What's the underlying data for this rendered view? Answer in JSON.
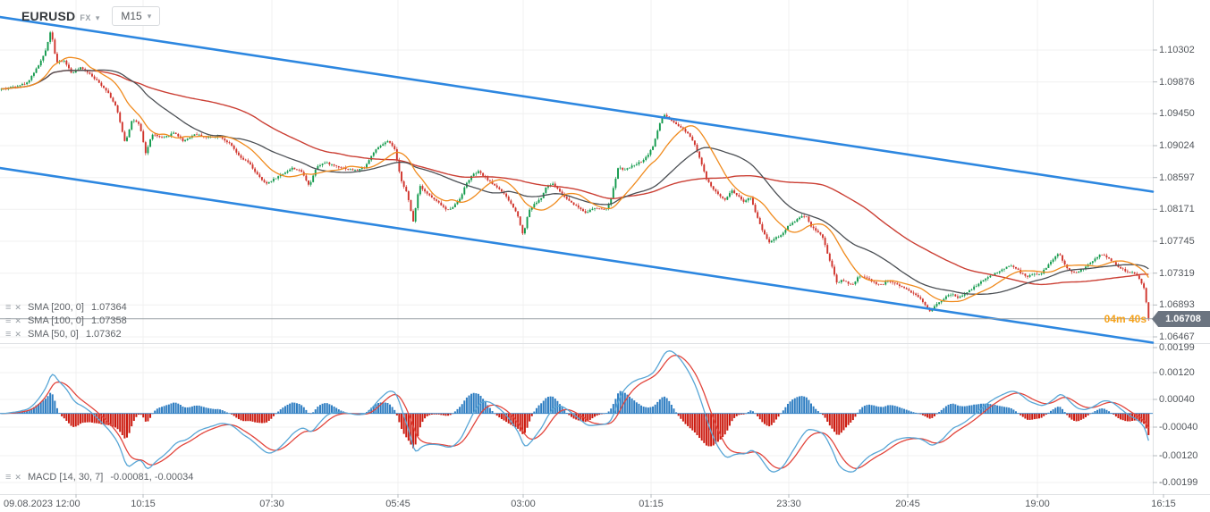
{
  "symbol_bar": {
    "symbol": "EURUSD",
    "market": "FX",
    "timeframe": "M15"
  },
  "legends": {
    "sma": [
      {
        "label": "SMA [200, 0]",
        "value": "1.07364"
      },
      {
        "label": "SMA [100, 0]",
        "value": "1.07358"
      },
      {
        "label": "SMA [50, 0]",
        "value": "1.07362"
      }
    ],
    "macd": {
      "label": "MACD [14, 30, 7]",
      "value": "-0.00081, -0.00034"
    }
  },
  "price_axis": {
    "labels": [
      "1.10302",
      "1.09876",
      "1.09450",
      "1.09024",
      "1.08597",
      "1.08171",
      "1.07745",
      "1.07319",
      "1.06893",
      "1.06467"
    ]
  },
  "macd_axis": {
    "labels": [
      "0.00199",
      "0.00120",
      "0.00040",
      "-0.00040",
      "-0.00120",
      "-0.00199"
    ]
  },
  "time_axis": {
    "labels": [
      "09.08.2023  12:00",
      "10:15",
      "07:30",
      "05:45",
      "03:00",
      "01:15",
      "23:30",
      "20:45",
      "19:00",
      "16:15"
    ]
  },
  "price_marker": {
    "value": "1.06708",
    "countdown": "04m 40s"
  },
  "colors": {
    "up": "#129a4c",
    "down": "#d0342c",
    "sma50": "#f08b1e",
    "sma100": "#4b4f54",
    "sma200": "#cb3f34",
    "channel": "#2d87e0",
    "macd_pos": "#2f7ec2",
    "macd_neg": "#cc1b10",
    "macd_line": "#58a6d6",
    "signal_line": "#e2453c",
    "price_line": "#9aa0a5",
    "badge_bg": "#6b7480",
    "countdown": "#f5a21b",
    "grid": "#f0f0f0",
    "border": "#dfe1e4",
    "tick": "#b6bbbf"
  },
  "chart_data": {
    "type": "candlestick",
    "symbol": "EURUSD",
    "timeframe": "M15",
    "date_start": "09.08.2023 12:00",
    "current_price": 1.06708,
    "indicators": [
      {
        "name": "SMA",
        "params": [
          200,
          0
        ],
        "last": 1.07364
      },
      {
        "name": "SMA",
        "params": [
          100,
          0
        ],
        "last": 1.07358
      },
      {
        "name": "SMA",
        "params": [
          50,
          0
        ],
        "last": 1.07362
      },
      {
        "name": "MACD",
        "params": [
          14,
          30,
          7
        ],
        "last": [
          -0.00081,
          -0.00034
        ]
      }
    ],
    "price_range_ticks": [
      1.10302,
      1.06467
    ],
    "macd_range_ticks": [
      0.00199,
      -0.00199
    ],
    "channel": {
      "upper": [
        [
          0,
          1.10744
        ],
        [
          1289,
          1.08408
        ]
      ],
      "lower": [
        [
          0,
          1.08725
        ],
        [
          1289,
          1.06389
        ]
      ]
    },
    "price_path": [
      [
        0,
        1.09776
      ],
      [
        15,
        1.09812
      ],
      [
        30,
        1.0986
      ],
      [
        42,
        1.10075
      ],
      [
        50,
        1.10254
      ],
      [
        57,
        1.10577
      ],
      [
        63,
        1.10135
      ],
      [
        72,
        1.10159
      ],
      [
        80,
        1.09991
      ],
      [
        90,
        1.10063
      ],
      [
        100,
        1.09991
      ],
      [
        110,
        1.09872
      ],
      [
        120,
        1.09752
      ],
      [
        130,
        1.09537
      ],
      [
        140,
        1.0906
      ],
      [
        148,
        1.09382
      ],
      [
        156,
        1.09298
      ],
      [
        163,
        1.08916
      ],
      [
        170,
        1.09179
      ],
      [
        182,
        1.09119
      ],
      [
        195,
        1.09203
      ],
      [
        205,
        1.09083
      ],
      [
        218,
        1.09179
      ],
      [
        232,
        1.09131
      ],
      [
        245,
        1.09155
      ],
      [
        258,
        1.09036
      ],
      [
        268,
        1.08868
      ],
      [
        278,
        1.08797
      ],
      [
        288,
        1.08629
      ],
      [
        297,
        1.0851
      ],
      [
        307,
        1.08582
      ],
      [
        317,
        1.08653
      ],
      [
        327,
        1.08725
      ],
      [
        337,
        1.08677
      ],
      [
        346,
        1.08486
      ],
      [
        354,
        1.08749
      ],
      [
        364,
        1.08797
      ],
      [
        376,
        1.08749
      ],
      [
        388,
        1.08713
      ],
      [
        398,
        1.08689
      ],
      [
        408,
        1.08737
      ],
      [
        418,
        1.0894
      ],
      [
        427,
        1.09036
      ],
      [
        434,
        1.09083
      ],
      [
        441,
        1.08988
      ],
      [
        448,
        1.08582
      ],
      [
        455,
        1.0839
      ],
      [
        462,
        1.08008
      ],
      [
        469,
        1.08498
      ],
      [
        477,
        1.0839
      ],
      [
        485,
        1.08307
      ],
      [
        493,
        1.08235
      ],
      [
        500,
        1.08152
      ],
      [
        508,
        1.08223
      ],
      [
        515,
        1.08331
      ],
      [
        521,
        1.0851
      ],
      [
        528,
        1.08629
      ],
      [
        535,
        1.08677
      ],
      [
        543,
        1.08594
      ],
      [
        551,
        1.0851
      ],
      [
        558,
        1.0845
      ],
      [
        565,
        1.08355
      ],
      [
        572,
        1.08235
      ],
      [
        579,
        1.08092
      ],
      [
        585,
        1.07817
      ],
      [
        591,
        1.08152
      ],
      [
        598,
        1.08247
      ],
      [
        605,
        1.08319
      ],
      [
        611,
        1.08474
      ],
      [
        618,
        1.0851
      ],
      [
        625,
        1.08426
      ],
      [
        633,
        1.08319
      ],
      [
        641,
        1.08247
      ],
      [
        648,
        1.08187
      ],
      [
        655,
        1.08128
      ],
      [
        662,
        1.08175
      ],
      [
        669,
        1.08187
      ],
      [
        676,
        1.08163
      ],
      [
        682,
        1.08247
      ],
      [
        687,
        1.08522
      ],
      [
        692,
        1.08761
      ],
      [
        697,
        1.08689
      ],
      [
        703,
        1.08725
      ],
      [
        710,
        1.08773
      ],
      [
        717,
        1.08809
      ],
      [
        724,
        1.08892
      ],
      [
        731,
        1.09036
      ],
      [
        737,
        1.09298
      ],
      [
        742,
        1.09442
      ],
      [
        748,
        1.09382
      ],
      [
        755,
        1.0931
      ],
      [
        762,
        1.09263
      ],
      [
        769,
        1.09191
      ],
      [
        776,
        1.09071
      ],
      [
        783,
        1.08833
      ],
      [
        790,
        1.0857
      ],
      [
        797,
        1.0845
      ],
      [
        804,
        1.08355
      ],
      [
        811,
        1.08307
      ],
      [
        818,
        1.08426
      ],
      [
        825,
        1.08355
      ],
      [
        832,
        1.08271
      ],
      [
        839,
        1.08331
      ],
      [
        846,
        1.08092
      ],
      [
        853,
        1.07877
      ],
      [
        860,
        1.07733
      ],
      [
        867,
        1.07793
      ],
      [
        874,
        1.07829
      ],
      [
        881,
        1.07948
      ],
      [
        888,
        1.08008
      ],
      [
        895,
        1.08068
      ],
      [
        901,
        1.08092
      ],
      [
        907,
        1.07948
      ],
      [
        913,
        1.07877
      ],
      [
        919,
        1.07829
      ],
      [
        926,
        1.07554
      ],
      [
        931,
        1.07375
      ],
      [
        936,
        1.07172
      ],
      [
        941,
        1.07232
      ],
      [
        947,
        1.07196
      ],
      [
        953,
        1.07148
      ],
      [
        959,
        1.07256
      ],
      [
        965,
        1.07279
      ],
      [
        972,
        1.07232
      ],
      [
        979,
        1.07184
      ],
      [
        986,
        1.0716
      ],
      [
        993,
        1.0722
      ],
      [
        1000,
        1.07184
      ],
      [
        1007,
        1.07148
      ],
      [
        1014,
        1.071
      ],
      [
        1021,
        1.07052
      ],
      [
        1028,
        1.06993
      ],
      [
        1034,
        1.06897
      ],
      [
        1040,
        1.06813
      ],
      [
        1046,
        1.06897
      ],
      [
        1052,
        1.06945
      ],
      [
        1058,
        1.07005
      ],
      [
        1064,
        1.0704
      ],
      [
        1070,
        1.06993
      ],
      [
        1076,
        1.07017
      ],
      [
        1082,
        1.07064
      ],
      [
        1088,
        1.07124
      ],
      [
        1094,
        1.07172
      ],
      [
        1100,
        1.07232
      ],
      [
        1107,
        1.07279
      ],
      [
        1114,
        1.07327
      ],
      [
        1121,
        1.07363
      ],
      [
        1128,
        1.07423
      ],
      [
        1135,
        1.07399
      ],
      [
        1142,
        1.07315
      ],
      [
        1149,
        1.07267
      ],
      [
        1156,
        1.07315
      ],
      [
        1163,
        1.07291
      ],
      [
        1170,
        1.07399
      ],
      [
        1177,
        1.07494
      ],
      [
        1184,
        1.0759
      ],
      [
        1190,
        1.07435
      ],
      [
        1196,
        1.07351
      ],
      [
        1202,
        1.07315
      ],
      [
        1209,
        1.07363
      ],
      [
        1216,
        1.07423
      ],
      [
        1223,
        1.07494
      ],
      [
        1230,
        1.07566
      ],
      [
        1237,
        1.07542
      ],
      [
        1244,
        1.07471
      ],
      [
        1251,
        1.07399
      ],
      [
        1258,
        1.07351
      ],
      [
        1265,
        1.07327
      ],
      [
        1272,
        1.07291
      ],
      [
        1279,
        1.07124
      ],
      [
        1285,
        1.06708
      ]
    ]
  }
}
